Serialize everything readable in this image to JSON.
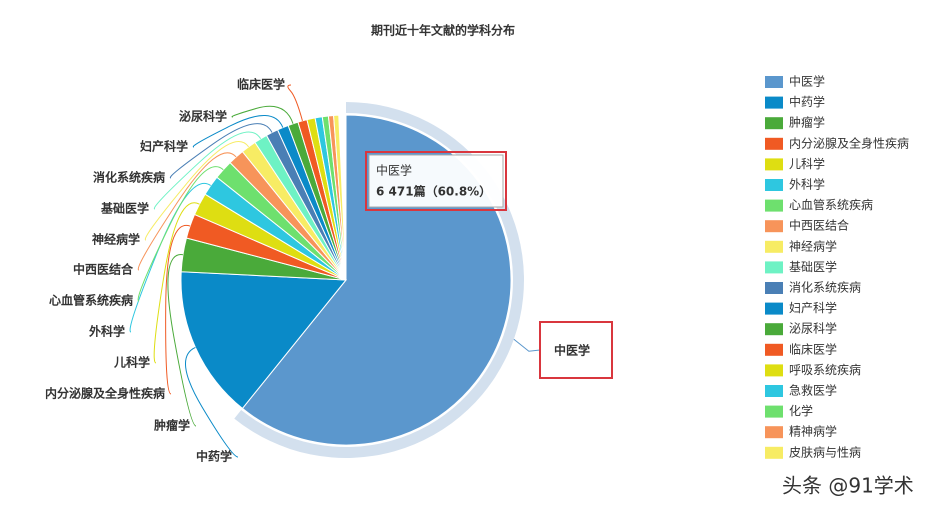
{
  "chart_data": {
    "type": "pie",
    "title": "期刊近十年文献的学科分布",
    "categories": [
      "中医学",
      "中药学",
      "肿瘤学",
      "内分泌腺及全身性疾病",
      "儿科学",
      "外科学",
      "心血管系统疾病",
      "中西医结合",
      "神经病学",
      "基础医学",
      "消化系统疾病",
      "妇产科学",
      "泌尿科学",
      "临床医学",
      "呼吸系统疾病",
      "急救医学",
      "化学",
      "精神病学",
      "皮肤病与性病"
    ],
    "values": [
      60.8,
      15,
      3.3,
      2.4,
      2.2,
      2,
      1.9,
      1.6,
      1.5,
      1.3,
      1.2,
      1.1,
      1,
      0.9,
      0.8,
      0.7,
      0.6,
      0.5,
      0.5
    ],
    "colors": [
      "#5b97cd",
      "#0a8ac8",
      "#4aaa3a",
      "#f05a23",
      "#dede12",
      "#2ec7e0",
      "#6ee06e",
      "#f7945a",
      "#f7ec64",
      "#6ef2c4",
      "#4a7fb5",
      "#0a8ac8",
      "#4aaa3a",
      "#f05a23",
      "#dede12",
      "#2ec7e0",
      "#6ee06e",
      "#f7945a",
      "#f7ec64"
    ],
    "tooltip": {
      "title": "中医学",
      "text": "6 471篇（60.8%）"
    },
    "legend": "right",
    "watermark": "头条 @91学术"
  }
}
